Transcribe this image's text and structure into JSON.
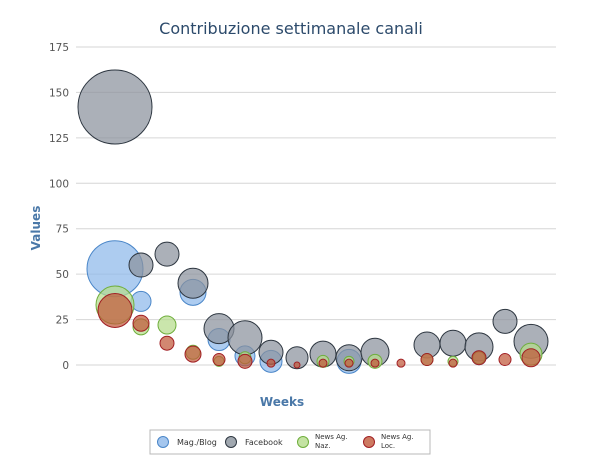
{
  "chart_data": {
    "type": "bubble",
    "title": "Contribuzione settimanale canali",
    "xlabel": "Weeks",
    "ylabel": "Values",
    "ylim": [
      0,
      175
    ],
    "yticks": [
      "0",
      "25",
      "50",
      "75",
      "100",
      "125",
      "150",
      "175"
    ],
    "grid": true,
    "legend_position": "bottom",
    "legend_entries": [
      {
        "lines": [
          "Mag./Blog"
        ]
      },
      {
        "lines": [
          "Facebook"
        ]
      },
      {
        "lines": [
          "News Ag.",
          "Naz."
        ]
      },
      {
        "lines": [
          "News Ag.",
          "Loc."
        ]
      }
    ],
    "series": [
      {
        "color": "#8db8ea",
        "stroke": "#4a86c8",
        "points": [
          {
            "x": 1,
            "y": 53,
            "r": 28
          },
          {
            "x": 2,
            "y": 35,
            "r": 10
          },
          {
            "x": 4,
            "y": 40,
            "r": 13
          },
          {
            "x": 5,
            "y": 14,
            "r": 11
          },
          {
            "x": 6,
            "y": 5,
            "r": 10
          },
          {
            "x": 7,
            "y": 2,
            "r": 11
          },
          {
            "x": 10,
            "y": 2,
            "r": 12
          },
          {
            "x": 15,
            "y": 4,
            "r": 7
          }
        ]
      },
      {
        "color": "#8a929c",
        "stroke": "#2d3640",
        "points": [
          {
            "x": 1,
            "y": 142,
            "r": 37
          },
          {
            "x": 2,
            "y": 55,
            "r": 12
          },
          {
            "x": 3,
            "y": 61,
            "r": 12
          },
          {
            "x": 4,
            "y": 45,
            "r": 15
          },
          {
            "x": 5,
            "y": 20,
            "r": 15
          },
          {
            "x": 6,
            "y": 15,
            "r": 17
          },
          {
            "x": 7,
            "y": 7,
            "r": 12
          },
          {
            "x": 8,
            "y": 4,
            "r": 11
          },
          {
            "x": 9,
            "y": 6,
            "r": 13
          },
          {
            "x": 10,
            "y": 4,
            "r": 13
          },
          {
            "x": 11,
            "y": 7,
            "r": 14
          },
          {
            "x": 13,
            "y": 11,
            "r": 13
          },
          {
            "x": 14,
            "y": 12,
            "r": 13
          },
          {
            "x": 15,
            "y": 10,
            "r": 14
          },
          {
            "x": 16,
            "y": 24,
            "r": 12
          },
          {
            "x": 17,
            "y": 13,
            "r": 17
          }
        ]
      },
      {
        "color": "#b5dc8c",
        "stroke": "#6fae3c",
        "points": [
          {
            "x": 1,
            "y": 33,
            "r": 19
          },
          {
            "x": 2,
            "y": 21,
            "r": 8
          },
          {
            "x": 3,
            "y": 22,
            "r": 9
          },
          {
            "x": 4,
            "y": 7,
            "r": 7
          },
          {
            "x": 5,
            "y": 2,
            "r": 5
          },
          {
            "x": 6,
            "y": 4,
            "r": 6
          },
          {
            "x": 9,
            "y": 2,
            "r": 6
          },
          {
            "x": 10,
            "y": 2,
            "r": 5
          },
          {
            "x": 11,
            "y": 2,
            "r": 7
          },
          {
            "x": 13,
            "y": 3,
            "r": 6
          },
          {
            "x": 14,
            "y": 2,
            "r": 5
          },
          {
            "x": 15,
            "y": 4,
            "r": 6
          },
          {
            "x": 17,
            "y": 6,
            "r": 11
          }
        ]
      },
      {
        "color": "#c0593a",
        "stroke": "#a11f24",
        "points": [
          {
            "x": 1,
            "y": 30,
            "r": 17
          },
          {
            "x": 2,
            "y": 23,
            "r": 8
          },
          {
            "x": 3,
            "y": 12,
            "r": 7
          },
          {
            "x": 4,
            "y": 6,
            "r": 8
          },
          {
            "x": 5,
            "y": 3,
            "r": 6
          },
          {
            "x": 6,
            "y": 2,
            "r": 7
          },
          {
            "x": 7,
            "y": 1,
            "r": 4
          },
          {
            "x": 8,
            "y": 0,
            "r": 3
          },
          {
            "x": 9,
            "y": 1,
            "r": 4
          },
          {
            "x": 10,
            "y": 1,
            "r": 4
          },
          {
            "x": 11,
            "y": 1,
            "r": 4
          },
          {
            "x": 12,
            "y": 1,
            "r": 4
          },
          {
            "x": 13,
            "y": 3,
            "r": 6
          },
          {
            "x": 14,
            "y": 1,
            "r": 4
          },
          {
            "x": 15,
            "y": 4,
            "r": 7
          },
          {
            "x": 16,
            "y": 3,
            "r": 6
          },
          {
            "x": 17,
            "y": 4,
            "r": 9
          }
        ]
      }
    ]
  }
}
